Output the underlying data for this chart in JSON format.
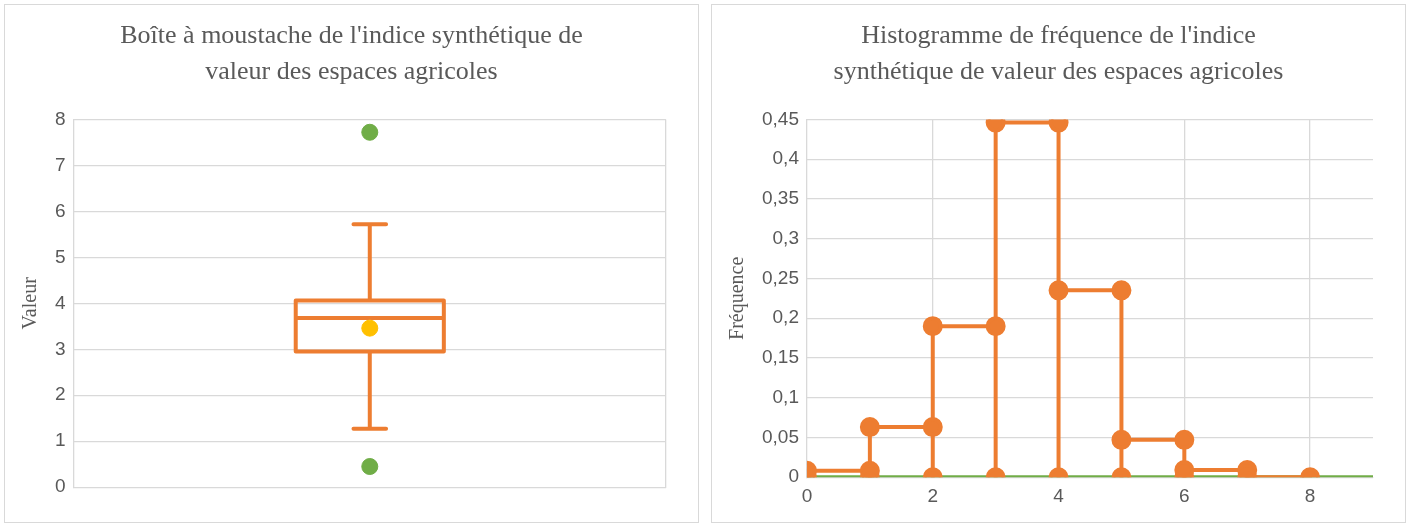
{
  "chart_data": [
    {
      "type": "box",
      "title": "Boîte à moustache de l'indice synthétique de valeur des espaces agricoles",
      "ylabel": "Valeur",
      "categories": [
        null
      ],
      "ylim": [
        0,
        8
      ],
      "yticks": [
        0,
        1,
        2,
        3,
        4,
        5,
        6,
        7,
        8
      ],
      "grid": true,
      "legend": false,
      "series": [
        {
          "color": "#ed7d31",
          "boxes": [
            {
              "low": 1.27,
              "q1": 2.95,
              "median": 3.68,
              "q3": 4.06,
              "high": 5.72,
              "mean": 3.46,
              "outliers": [
                0.45,
                7.72
              ]
            }
          ]
        }
      ]
    },
    {
      "type": "line",
      "title": "Histogramme de fréquence de l'indice synthétique de valeur des espaces agricoles",
      "ylabel": "Fréquence",
      "xlim": [
        0,
        9
      ],
      "xticks": [
        0,
        2,
        4,
        6,
        8
      ],
      "ylim": [
        0,
        0.45
      ],
      "yticks": [
        0,
        {
          "value": 0.05,
          "label": "0,05"
        },
        {
          "value": 0.1,
          "label": "0,1"
        },
        {
          "value": 0.15,
          "label": "0,15"
        },
        {
          "value": 0.2,
          "label": "0,2"
        },
        {
          "value": 0.25,
          "label": "0,25"
        },
        {
          "value": 0.3,
          "label": "0,3"
        },
        {
          "value": 0.35,
          "label": "0,35"
        },
        {
          "value": 0.4,
          "label": "0,4"
        },
        {
          "value": 0.45,
          "label": "0,45"
        }
      ],
      "grid": true,
      "legend": false,
      "series": [
        {
          "color": "#ed7d31",
          "marker": "circle",
          "x": [
            0,
            0,
            1,
            1,
            1,
            2,
            2,
            2,
            3,
            3,
            3,
            4,
            4,
            4,
            5,
            5,
            5,
            6,
            6,
            6,
            7,
            7,
            8
          ],
          "values": [
            0,
            0.008,
            0.008,
            0,
            0.063,
            0.063,
            0,
            0.19,
            0.19,
            0,
            0.446,
            0.446,
            0,
            0.235,
            0.235,
            0,
            0.047,
            0.047,
            0,
            0.009,
            0.009,
            0,
            0
          ]
        },
        {
          "color": "#70ad47",
          "marker": "none",
          "x": [
            0,
            9
          ],
          "values": [
            0,
            0
          ]
        }
      ]
    }
  ]
}
